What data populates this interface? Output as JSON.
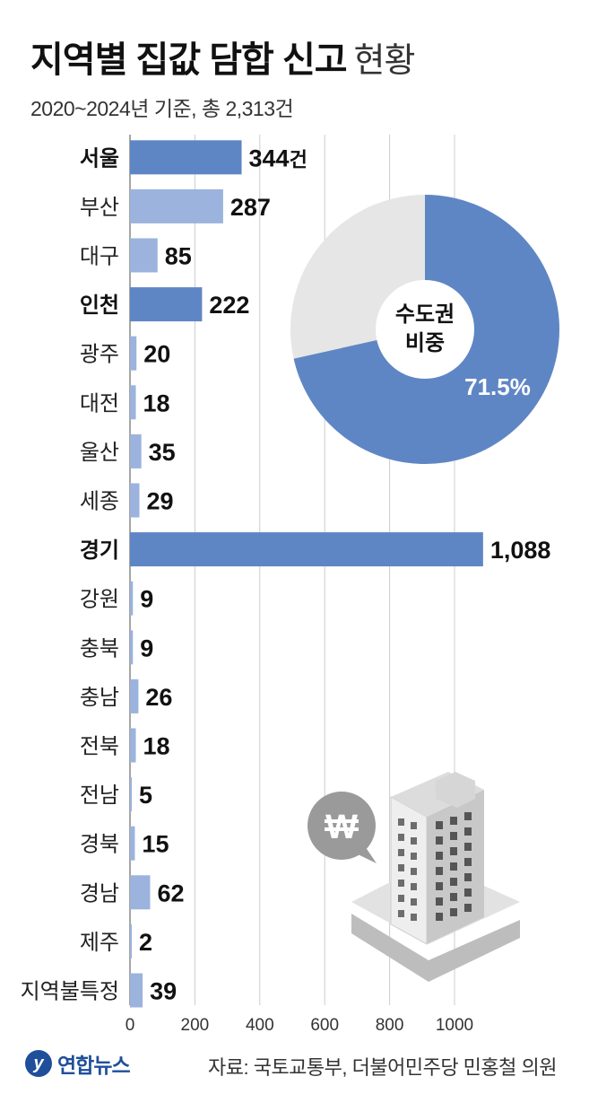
{
  "header": {
    "title_strong": "지역별 집값 담합 신고",
    "title_light": "현황",
    "subtitle": "2020~2024년 기준, 총 2,313건"
  },
  "chart_data": {
    "type": "bar",
    "orientation": "horizontal",
    "categories": [
      "서울",
      "부산",
      "대구",
      "인천",
      "광주",
      "대전",
      "울산",
      "세종",
      "경기",
      "강원",
      "충북",
      "충남",
      "전북",
      "전남",
      "경북",
      "경남",
      "제주",
      "지역불특정"
    ],
    "values": [
      344,
      287,
      85,
      222,
      20,
      18,
      35,
      29,
      1088,
      9,
      9,
      26,
      18,
      5,
      15,
      62,
      2,
      39
    ],
    "value_labels": [
      "344",
      "287",
      "85",
      "222",
      "20",
      "18",
      "35",
      "29",
      "1,088",
      "9",
      "9",
      "26",
      "18",
      "5",
      "15",
      "62",
      "2",
      "39"
    ],
    "first_value_suffix": "건",
    "capital_area": [
      "서울",
      "인천",
      "경기"
    ],
    "x_ticks": [
      "0",
      "200",
      "400",
      "600",
      "800",
      "1000"
    ],
    "xlim": [
      0,
      1100
    ],
    "grid": true,
    "colors": {
      "capital": "#5f86c4",
      "other": "#9bb3dd",
      "grid": "#cccccc"
    }
  },
  "donut": {
    "label_line1": "수도권",
    "label_line2": "비중",
    "percent_value": 71.5,
    "percent_label": "71.5%",
    "colors": {
      "main": "#5f86c4",
      "rest": "#e6e6e6"
    }
  },
  "illustration": {
    "won_icon": "won-speech-bubble-icon",
    "building_icon": "apartment-building-icon",
    "won_symbol": "W"
  },
  "footer": {
    "logo_text": "연합뉴스",
    "source": "자료: 국토교통부, 더불어민주당 민홍철 의원"
  }
}
